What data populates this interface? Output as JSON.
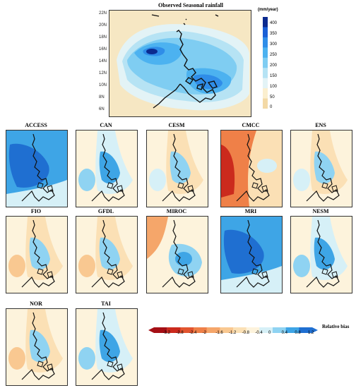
{
  "main_map": {
    "title": "Observed Seasonal rainfall",
    "lat_ticks": [
      "22N",
      "20N",
      "18N",
      "16N",
      "14N",
      "12N",
      "10N",
      "8N",
      "6N"
    ],
    "colorbar": {
      "unit": "(mm/year)",
      "ticks": [
        "400",
        "350",
        "300",
        "250",
        "200",
        "150",
        "100",
        "50",
        "0"
      ],
      "colors": [
        "#0b2a8f",
        "#1a5fd6",
        "#2f8de8",
        "#4cb2f0",
        "#7fcdf2",
        "#b6e3f4",
        "#e3f3f6",
        "#fbefcf",
        "#f3d9a6"
      ]
    }
  },
  "panels": [
    {
      "label": "ACCESS",
      "style": "blue"
    },
    {
      "label": "CAN",
      "style": "lightblue"
    },
    {
      "label": "CESM",
      "style": "mixed"
    },
    {
      "label": "CMCC",
      "style": "red"
    },
    {
      "label": "ENS",
      "style": "mixed"
    },
    {
      "label": "FIO",
      "style": "tan"
    },
    {
      "label": "GFDL",
      "style": "tan"
    },
    {
      "label": "MIROC",
      "style": "redwest"
    },
    {
      "label": "MRI",
      "style": "blue"
    },
    {
      "label": "NESM",
      "style": "lightblue"
    },
    {
      "label": "NOR",
      "style": "tan"
    },
    {
      "label": "TAI",
      "style": "lightblue"
    }
  ],
  "bias_colorbar": {
    "label": "Relative bias",
    "ticks": [
      "-3.2",
      "-2.8",
      "-2.4",
      "-2",
      "-1.6",
      "-1.2",
      "-0.8",
      "-0.4",
      "0",
      "0.4",
      "0.8",
      "1.2"
    ],
    "colors": [
      "#a50f15",
      "#cb2a1d",
      "#e2552f",
      "#ef8048",
      "#f5a66a",
      "#f9c891",
      "#fbe0b5",
      "#fdf3dc",
      "#d6f0f7",
      "#8fd3f2",
      "#3ea5e6",
      "#1f6fd1"
    ]
  }
}
